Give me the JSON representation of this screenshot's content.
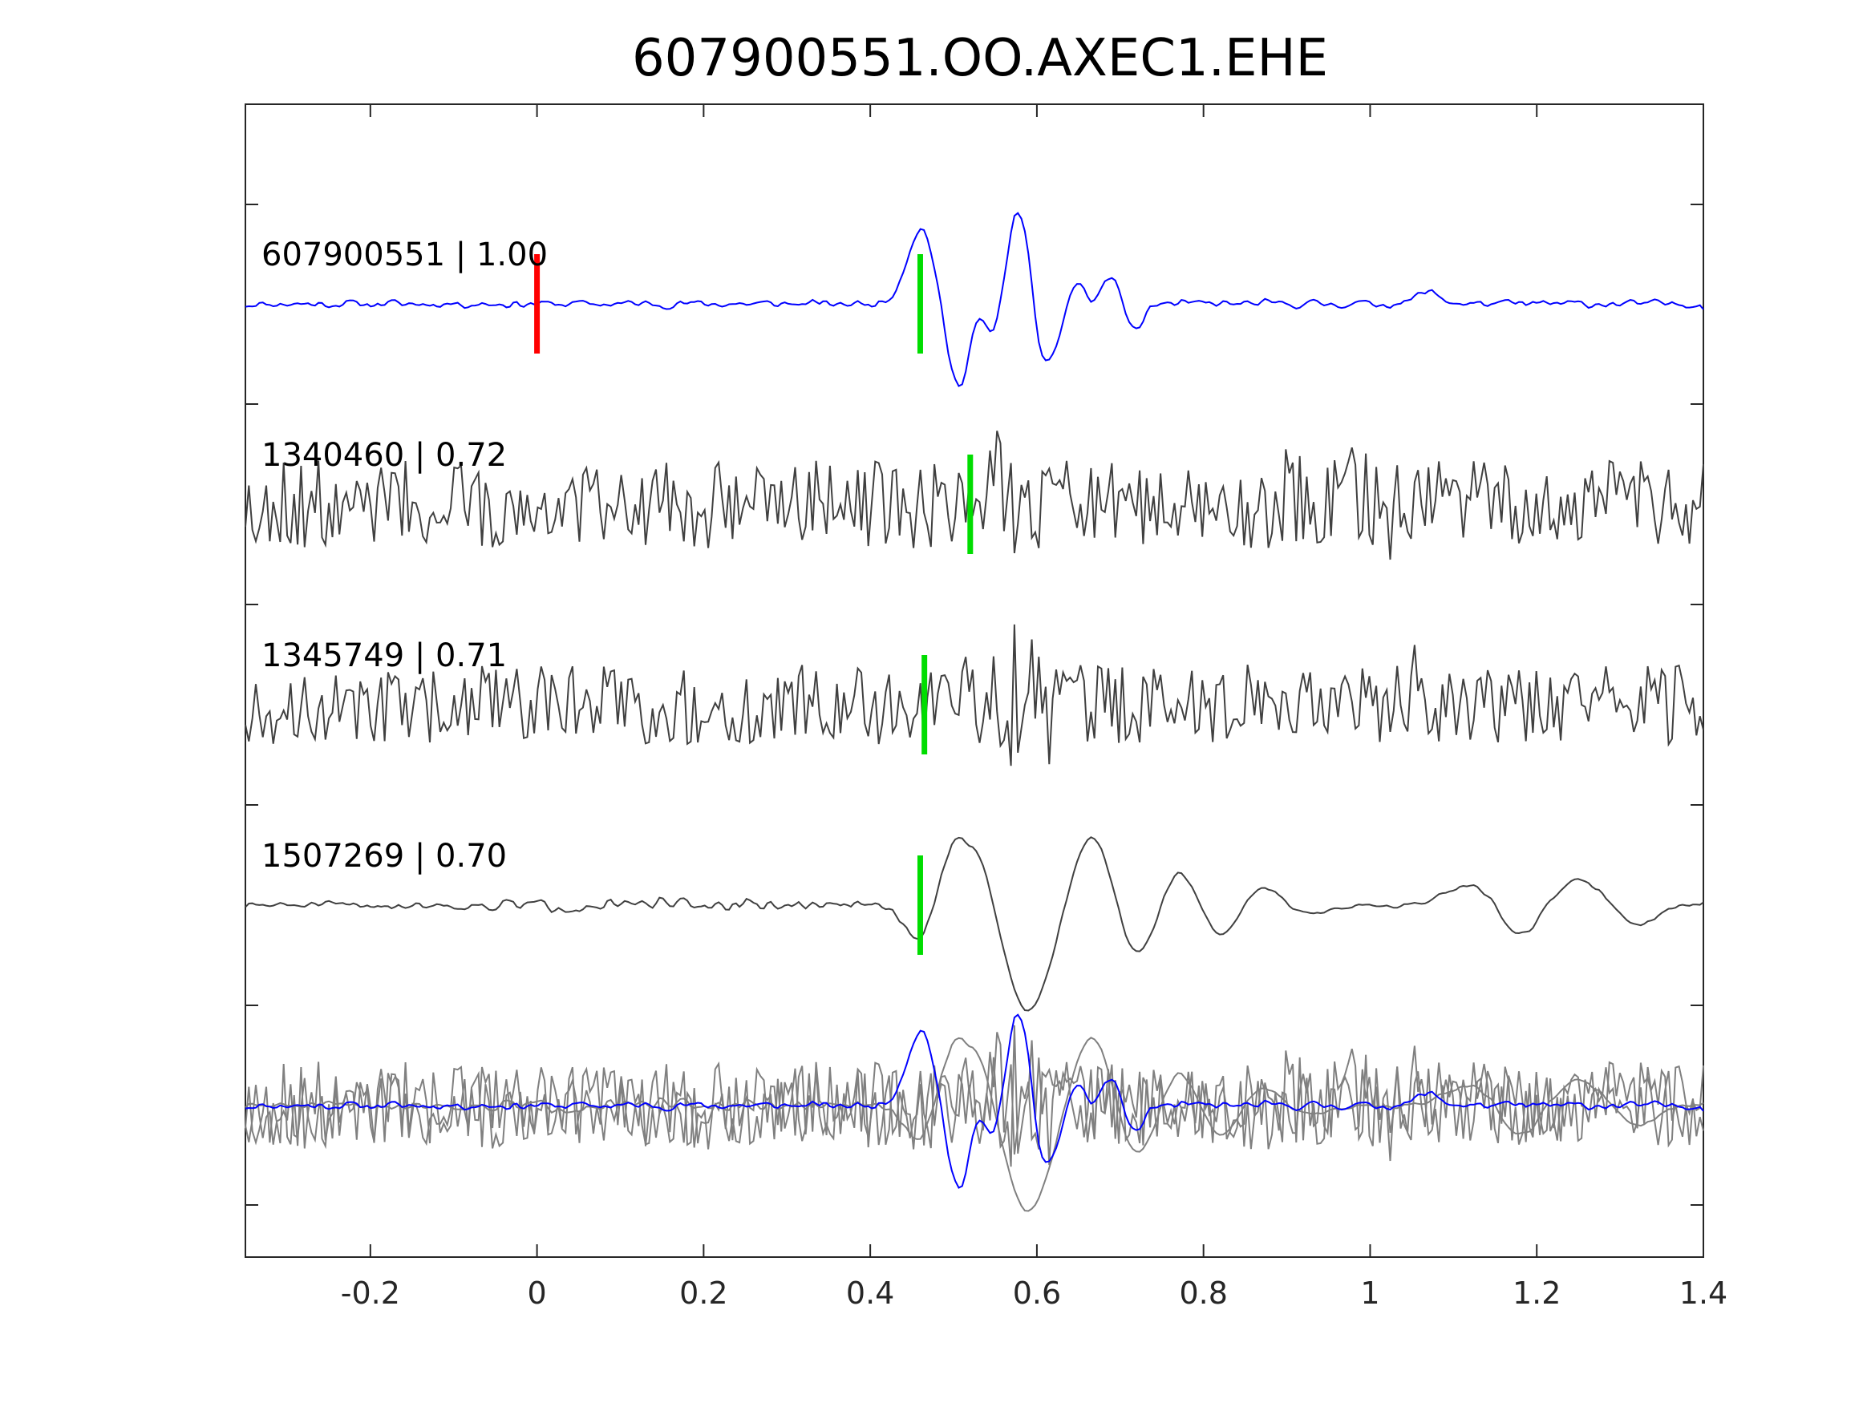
{
  "chart_data": {
    "type": "line",
    "title": "607900551.OO.AXEC1.EHE",
    "xlabel": "",
    "ylabel": "",
    "xlim": [
      -0.35,
      1.4
    ],
    "x_ticks": [
      "-0.2",
      "0",
      "0.2",
      "0.4",
      "0.6",
      "0.8",
      "1",
      "1.2",
      "1.4"
    ],
    "y_axis_tick_labels": "none",
    "grid": false,
    "colors": {
      "template": "#0000ff",
      "neighbor": "#404040",
      "overlay_neighbor": "#808080",
      "reference_pick": "#ff0000",
      "phase_pick": "#00dd00",
      "axes": "#262626"
    },
    "traces": [
      {
        "label": "607900551 | 1.00",
        "event_id": "607900551",
        "correlation": 1.0,
        "color": "template",
        "reference_pick_time": 0.0,
        "pick_time": 0.46,
        "character": "low-noise, impulsive arrival ~0.45 s with strongest peak ~0.58 s"
      },
      {
        "label": "1340460 | 0.72",
        "event_id": "1340460",
        "correlation": 0.72,
        "color": "neighbor",
        "pick_time": 0.52,
        "character": "high-frequency noisy waveform"
      },
      {
        "label": "1345749 | 0.71",
        "event_id": "1345749",
        "correlation": 0.71,
        "color": "neighbor",
        "pick_time": 0.465,
        "character": "high-frequency noisy waveform"
      },
      {
        "label": "1507269 | 0.70",
        "event_id": "1507269",
        "correlation": 0.7,
        "color": "neighbor",
        "pick_time": 0.46,
        "character": "low-frequency oscillation after ~0.4 s"
      }
    ],
    "overlay": {
      "description": "all traces superimposed",
      "template_color": "template",
      "others_color": "overlay_neighbor"
    }
  }
}
